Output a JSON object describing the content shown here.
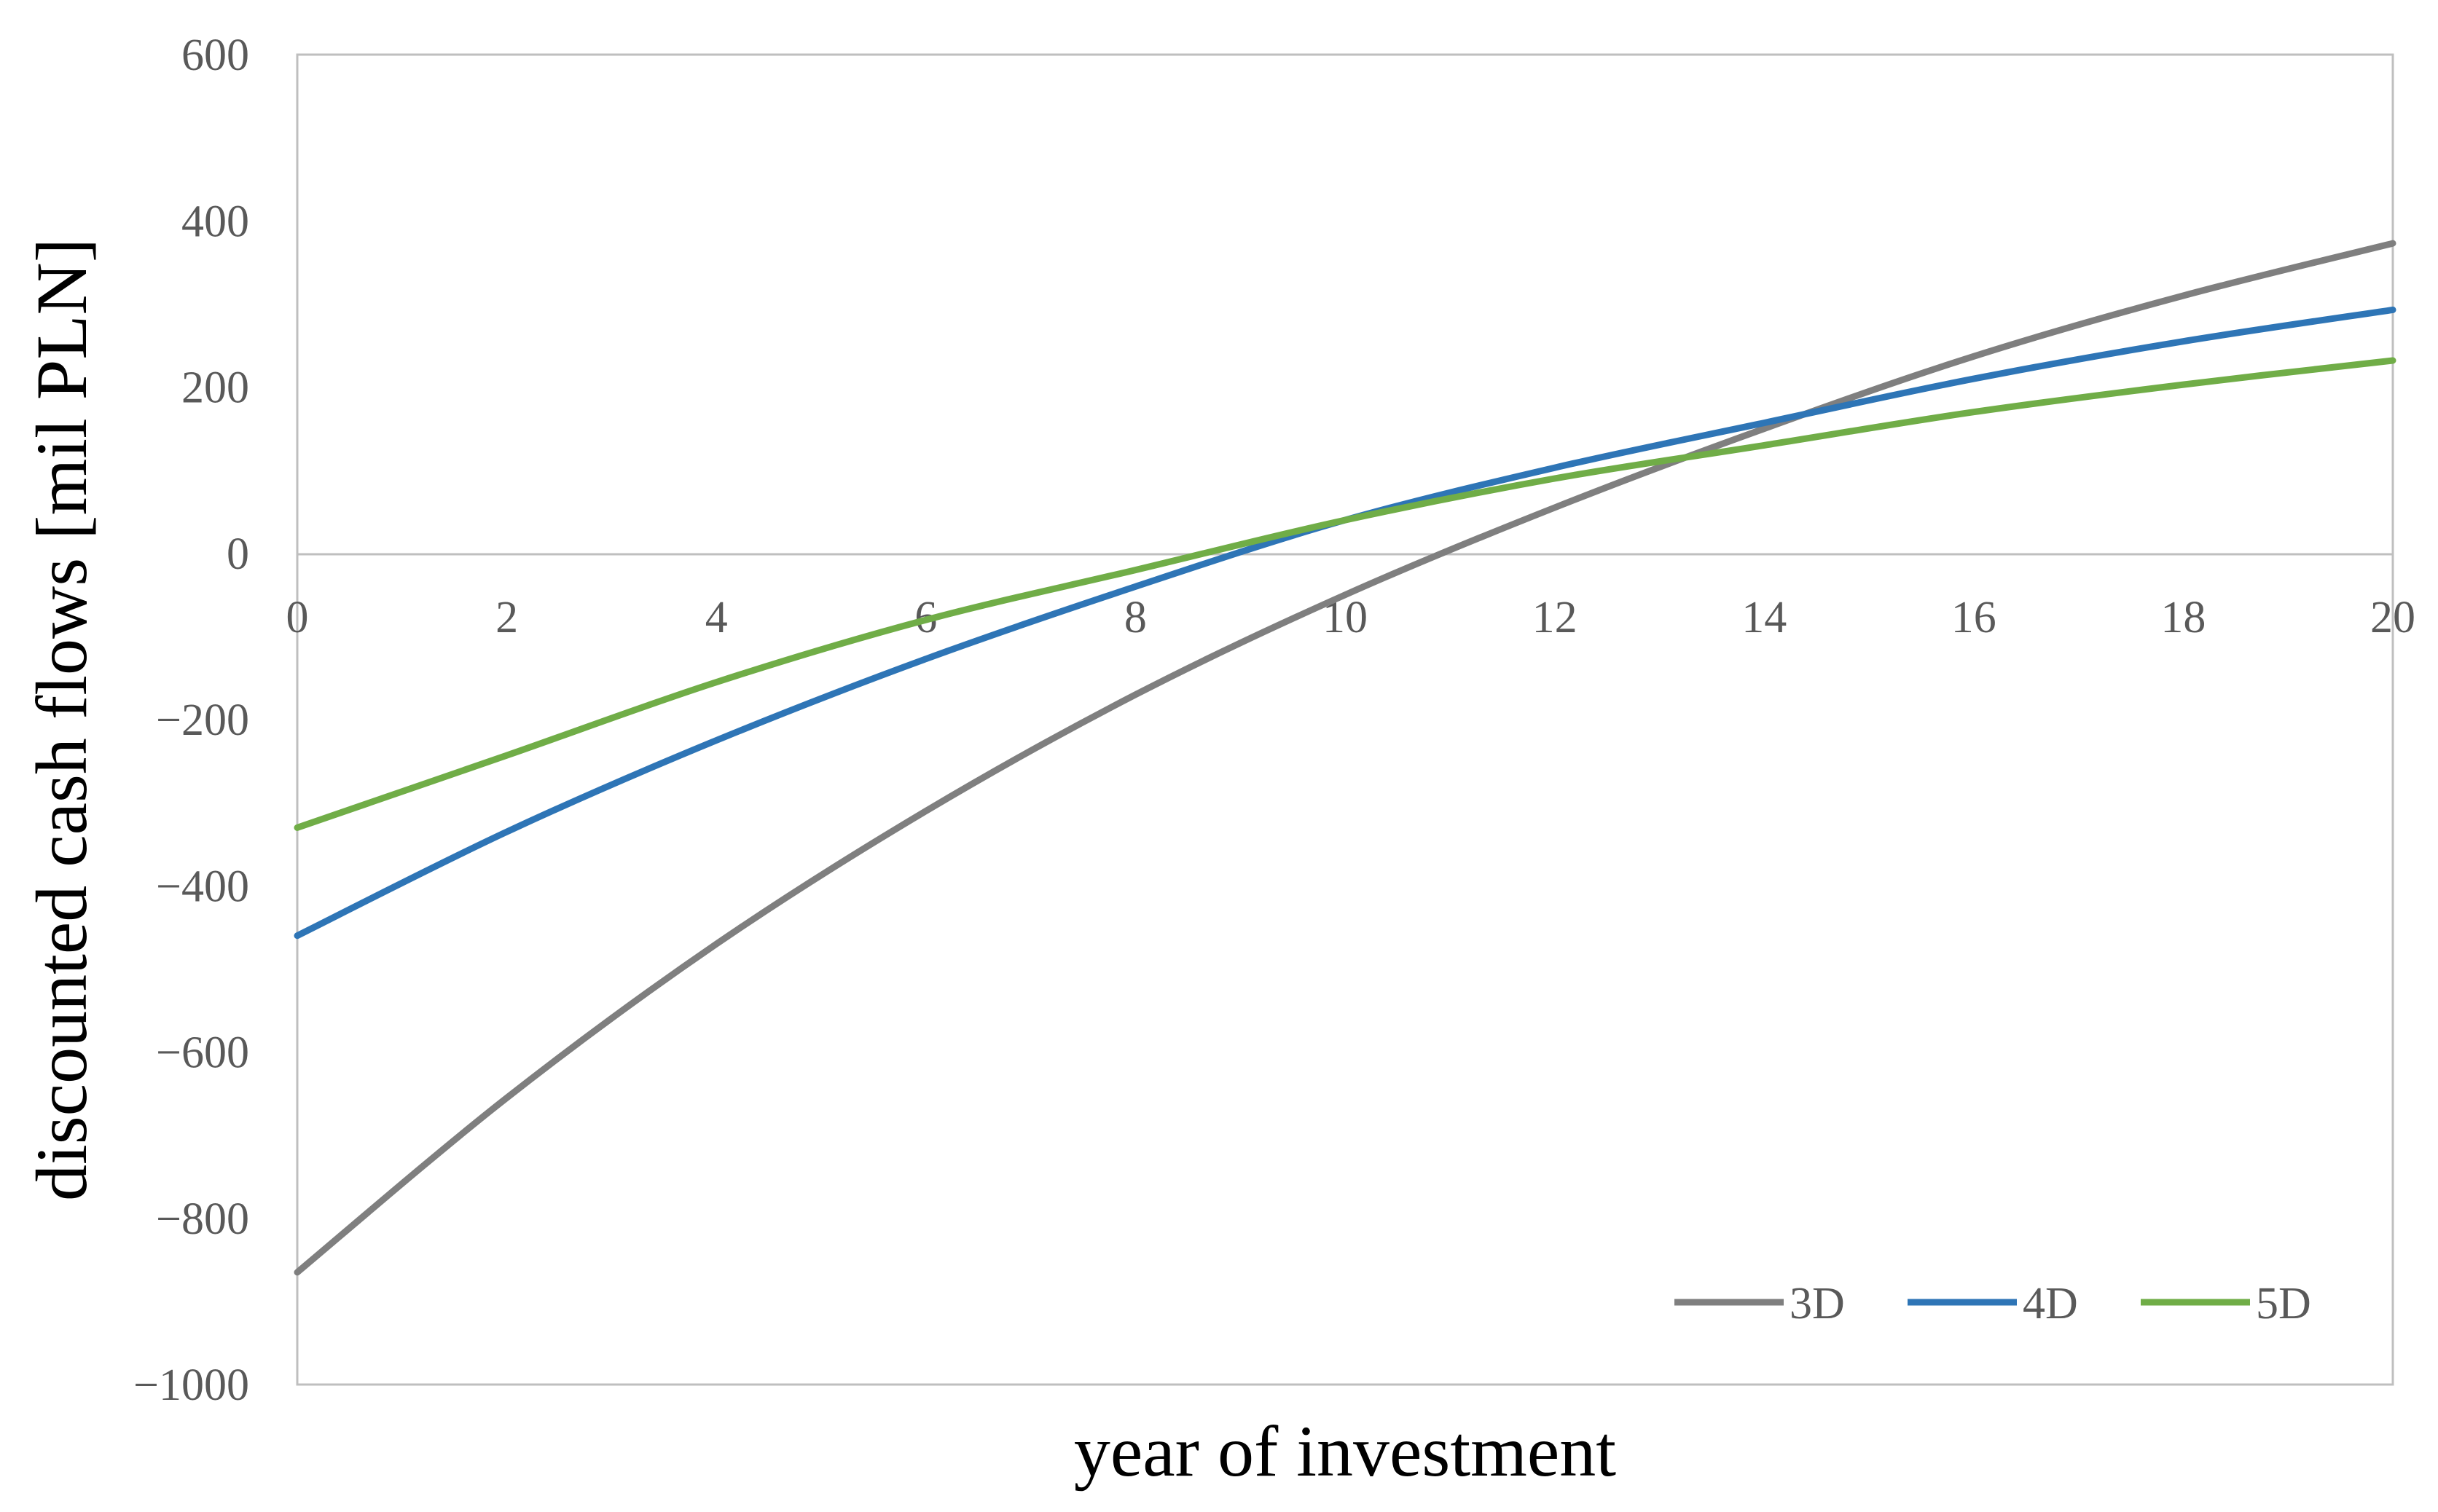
{
  "chart_data": {
    "type": "line",
    "xlabel": "year of investment",
    "ylabel": "discounted cash flows [mil PLN]",
    "xlim": [
      0,
      20
    ],
    "ylim": [
      -1000,
      600
    ],
    "xticks": [
      0,
      2,
      4,
      6,
      8,
      10,
      12,
      14,
      16,
      18,
      20
    ],
    "yticks": [
      600,
      400,
      200,
      0,
      -200,
      -400,
      -600,
      -800,
      -1000
    ],
    "ytick_labels": [
      "600",
      "400",
      "200",
      "0",
      "−200",
      "−400",
      "−600",
      "−800",
      "−1000"
    ],
    "grid": false,
    "legend_position": "bottom-right",
    "x": [
      0,
      2,
      4,
      6,
      8,
      10,
      12,
      14,
      16,
      18,
      20
    ],
    "series": [
      {
        "name": "3D",
        "color": "#7f7f7f",
        "values": [
          -865,
          -655,
          -470,
          -310,
          -170,
          -50,
          55,
          150,
          237,
          310,
          373
        ]
      },
      {
        "name": "4D",
        "color": "#2e75b6",
        "values": [
          -460,
          -335,
          -225,
          -127,
          -40,
          40,
          103,
          157,
          210,
          255,
          293
        ]
      },
      {
        "name": "5D",
        "color": "#70ad47",
        "values": [
          -330,
          -243,
          -155,
          -80,
          -20,
          40,
          90,
          130,
          170,
          203,
          232
        ]
      }
    ]
  }
}
